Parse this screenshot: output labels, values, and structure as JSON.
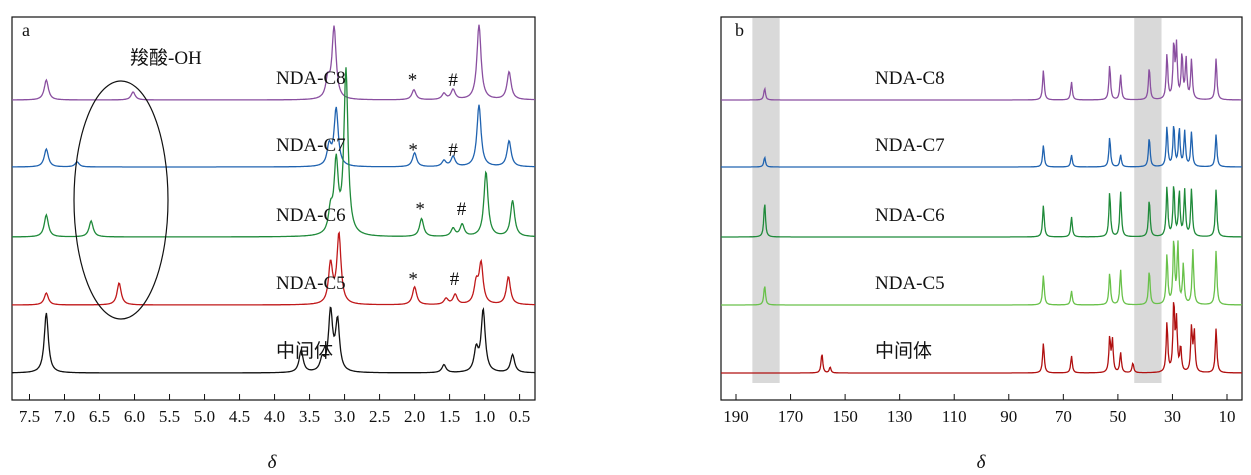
{
  "chart_data": [
    {
      "type": "line",
      "panel": "a",
      "xlabel": "δ",
      "x_reversed": true,
      "xlim": [
        7.75,
        0.28
      ],
      "x_ticks": [
        7.5,
        7.0,
        6.5,
        6.0,
        5.5,
        5.0,
        4.5,
        4.0,
        3.5,
        3.0,
        2.5,
        2.0,
        1.5,
        1.0,
        0.5
      ],
      "x_tick_labels": [
        "7.5",
        "7.0",
        "6.5",
        "6.0",
        "5.5",
        "5.0",
        "4.5",
        "4.0",
        "3.5",
        "3.0",
        "2.5",
        "2.0",
        "1.5",
        "1.0",
        "0.5"
      ],
      "annotations": [
        "羧酸-OH",
        "*",
        "#"
      ],
      "series": [
        {
          "name": "NDA-C8",
          "color": "#8a4fa0",
          "peaks": [
            [
              7.26,
              20
            ],
            [
              6.02,
              8
            ],
            [
              3.24,
              18
            ],
            [
              3.15,
              72
            ],
            [
              2.01,
              10
            ],
            [
              1.58,
              6
            ],
            [
              1.45,
              10
            ],
            [
              1.08,
              75
            ],
            [
              0.65,
              28
            ]
          ]
        },
        {
          "name": "NDA-C7",
          "color": "#2063b0",
          "peaks": [
            [
              7.26,
              18
            ],
            [
              6.82,
              5
            ],
            [
              3.22,
              20
            ],
            [
              3.12,
              58
            ],
            [
              2.0,
              14
            ],
            [
              1.58,
              6
            ],
            [
              1.45,
              10
            ],
            [
              1.08,
              62
            ],
            [
              0.65,
              26
            ]
          ]
        },
        {
          "name": "NDA-C6",
          "color": "#1f8a3a",
          "peaks": [
            [
              7.26,
              22
            ],
            [
              6.62,
              16
            ],
            [
              3.2,
              22
            ],
            [
              3.12,
              70
            ],
            [
              2.98,
              165
            ],
            [
              1.9,
              18
            ],
            [
              1.45,
              8
            ],
            [
              1.32,
              12
            ],
            [
              0.98,
              65
            ],
            [
              0.6,
              36
            ]
          ]
        },
        {
          "name": "NDA-C5",
          "color": "#c0181a",
          "peaks": [
            [
              7.26,
              12
            ],
            [
              6.22,
              22
            ],
            [
              3.2,
              40
            ],
            [
              3.08,
              70
            ],
            [
              2.0,
              18
            ],
            [
              1.55,
              6
            ],
            [
              1.42,
              10
            ],
            [
              1.12,
              20
            ],
            [
              1.05,
              40
            ],
            [
              0.66,
              28
            ]
          ]
        },
        {
          "name": "中间体",
          "color": "#111111",
          "peaks": [
            [
              7.26,
              60
            ],
            [
              3.62,
              22
            ],
            [
              3.32,
              12
            ],
            [
              3.2,
              60
            ],
            [
              3.1,
              50
            ],
            [
              1.58,
              8
            ],
            [
              1.12,
              22
            ],
            [
              1.02,
              62
            ],
            [
              0.6,
              18
            ]
          ]
        }
      ]
    },
    {
      "type": "line",
      "panel": "b",
      "xlabel": "δ",
      "x_reversed": true,
      "xlim": [
        195.5,
        4.5
      ],
      "x_ticks": [
        190,
        170,
        150,
        130,
        110,
        90,
        70,
        50,
        30,
        10
      ],
      "x_tick_labels": [
        "190",
        "170",
        "150",
        "130",
        "110",
        "90",
        "70",
        "50",
        "30",
        "10"
      ],
      "shaded_ranges": [
        [
          184,
          174
        ],
        [
          44,
          34
        ]
      ],
      "series": [
        {
          "name": "NDA-C8",
          "color": "#8a4fa0",
          "peaks": [
            [
              179.5,
              12
            ],
            [
              77.3,
              30
            ],
            [
              67,
              18
            ],
            [
              53,
              35
            ],
            [
              49,
              25
            ],
            [
              38.5,
              33
            ],
            [
              32,
              45
            ],
            [
              29.5,
              55
            ],
            [
              28.5,
              52
            ],
            [
              26.5,
              45
            ],
            [
              25,
              40
            ],
            [
              23,
              40
            ],
            [
              14,
              42
            ]
          ]
        },
        {
          "name": "NDA-C7",
          "color": "#2063b0",
          "peaks": [
            [
              179.5,
              10
            ],
            [
              77.3,
              22
            ],
            [
              67,
              12
            ],
            [
              53,
              30
            ],
            [
              49,
              12
            ],
            [
              38.5,
              30
            ],
            [
              32,
              40
            ],
            [
              29.5,
              42
            ],
            [
              27.5,
              38
            ],
            [
              25.5,
              35
            ],
            [
              23,
              35
            ],
            [
              14,
              33
            ]
          ]
        },
        {
          "name": "NDA-C6",
          "color": "#1f8a3a",
          "peaks": [
            [
              179.5,
              35
            ],
            [
              77.3,
              32
            ],
            [
              67,
              20
            ],
            [
              53,
              45
            ],
            [
              49,
              45
            ],
            [
              38.5,
              38
            ],
            [
              32,
              50
            ],
            [
              29.5,
              52
            ],
            [
              27.5,
              45
            ],
            [
              25.5,
              46
            ],
            [
              23,
              48
            ],
            [
              14,
              48
            ]
          ]
        },
        {
          "name": "NDA-C5",
          "color": "#69c14a",
          "peaks": [
            [
              179.5,
              20
            ],
            [
              77.3,
              30
            ],
            [
              67,
              14
            ],
            [
              53,
              32
            ],
            [
              49,
              35
            ],
            [
              38.5,
              35
            ],
            [
              32,
              50
            ],
            [
              29.5,
              65
            ],
            [
              28,
              60
            ],
            [
              26,
              40
            ],
            [
              22.5,
              55
            ],
            [
              14,
              55
            ]
          ]
        },
        {
          "name": "中间体",
          "color": "#b01010",
          "peaks": [
            [
              158.5,
              20
            ],
            [
              155.5,
              6
            ],
            [
              77.3,
              30
            ],
            [
              67,
              17
            ],
            [
              53,
              35
            ],
            [
              52,
              32
            ],
            [
              49,
              20
            ],
            [
              44.5,
              10
            ],
            [
              32,
              50
            ],
            [
              29.5,
              70
            ],
            [
              28.5,
              50
            ],
            [
              27,
              25
            ],
            [
              23,
              45
            ],
            [
              22,
              40
            ],
            [
              14,
              45
            ]
          ]
        }
      ]
    }
  ]
}
